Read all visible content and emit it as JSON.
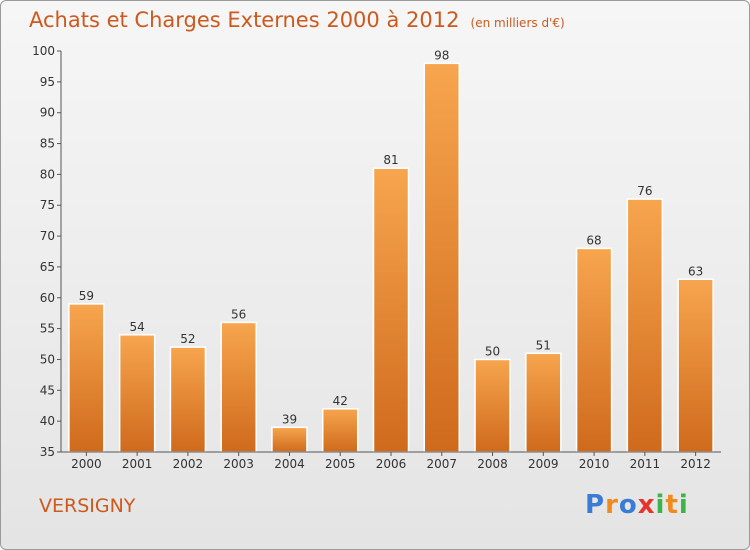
{
  "chart_data": {
    "type": "bar",
    "title": "Achats et Charges Externes 2000 à 2012",
    "unit_note": "(en milliers d'€)",
    "categories": [
      "2000",
      "2001",
      "2002",
      "2003",
      "2004",
      "2005",
      "2006",
      "2007",
      "2008",
      "2009",
      "2010",
      "2011",
      "2012"
    ],
    "values": [
      59,
      54,
      52,
      56,
      39,
      42,
      81,
      98,
      50,
      51,
      68,
      76,
      63
    ],
    "xlabel": "",
    "ylabel": "",
    "ylim": [
      35,
      100
    ],
    "yticks": [
      35,
      40,
      45,
      50,
      55,
      60,
      65,
      70,
      75,
      80,
      85,
      90,
      95,
      100
    ],
    "grid": false,
    "legend": "none"
  },
  "footer": {
    "commune": "VERSIGNY",
    "brand_letters": [
      "P",
      "r",
      "o",
      "x",
      "i",
      "t",
      "i"
    ]
  },
  "colors": {
    "title": "#cc5a1e",
    "bar_light": "#f7a54e",
    "bar_dark": "#cf6a1c",
    "axis": "#555555",
    "brand": [
      "#3a7bd5",
      "#f08a1c",
      "#3a7bd5",
      "#e8332a",
      "#3ab54a",
      "#f08a1c",
      "#3ab54a"
    ]
  }
}
